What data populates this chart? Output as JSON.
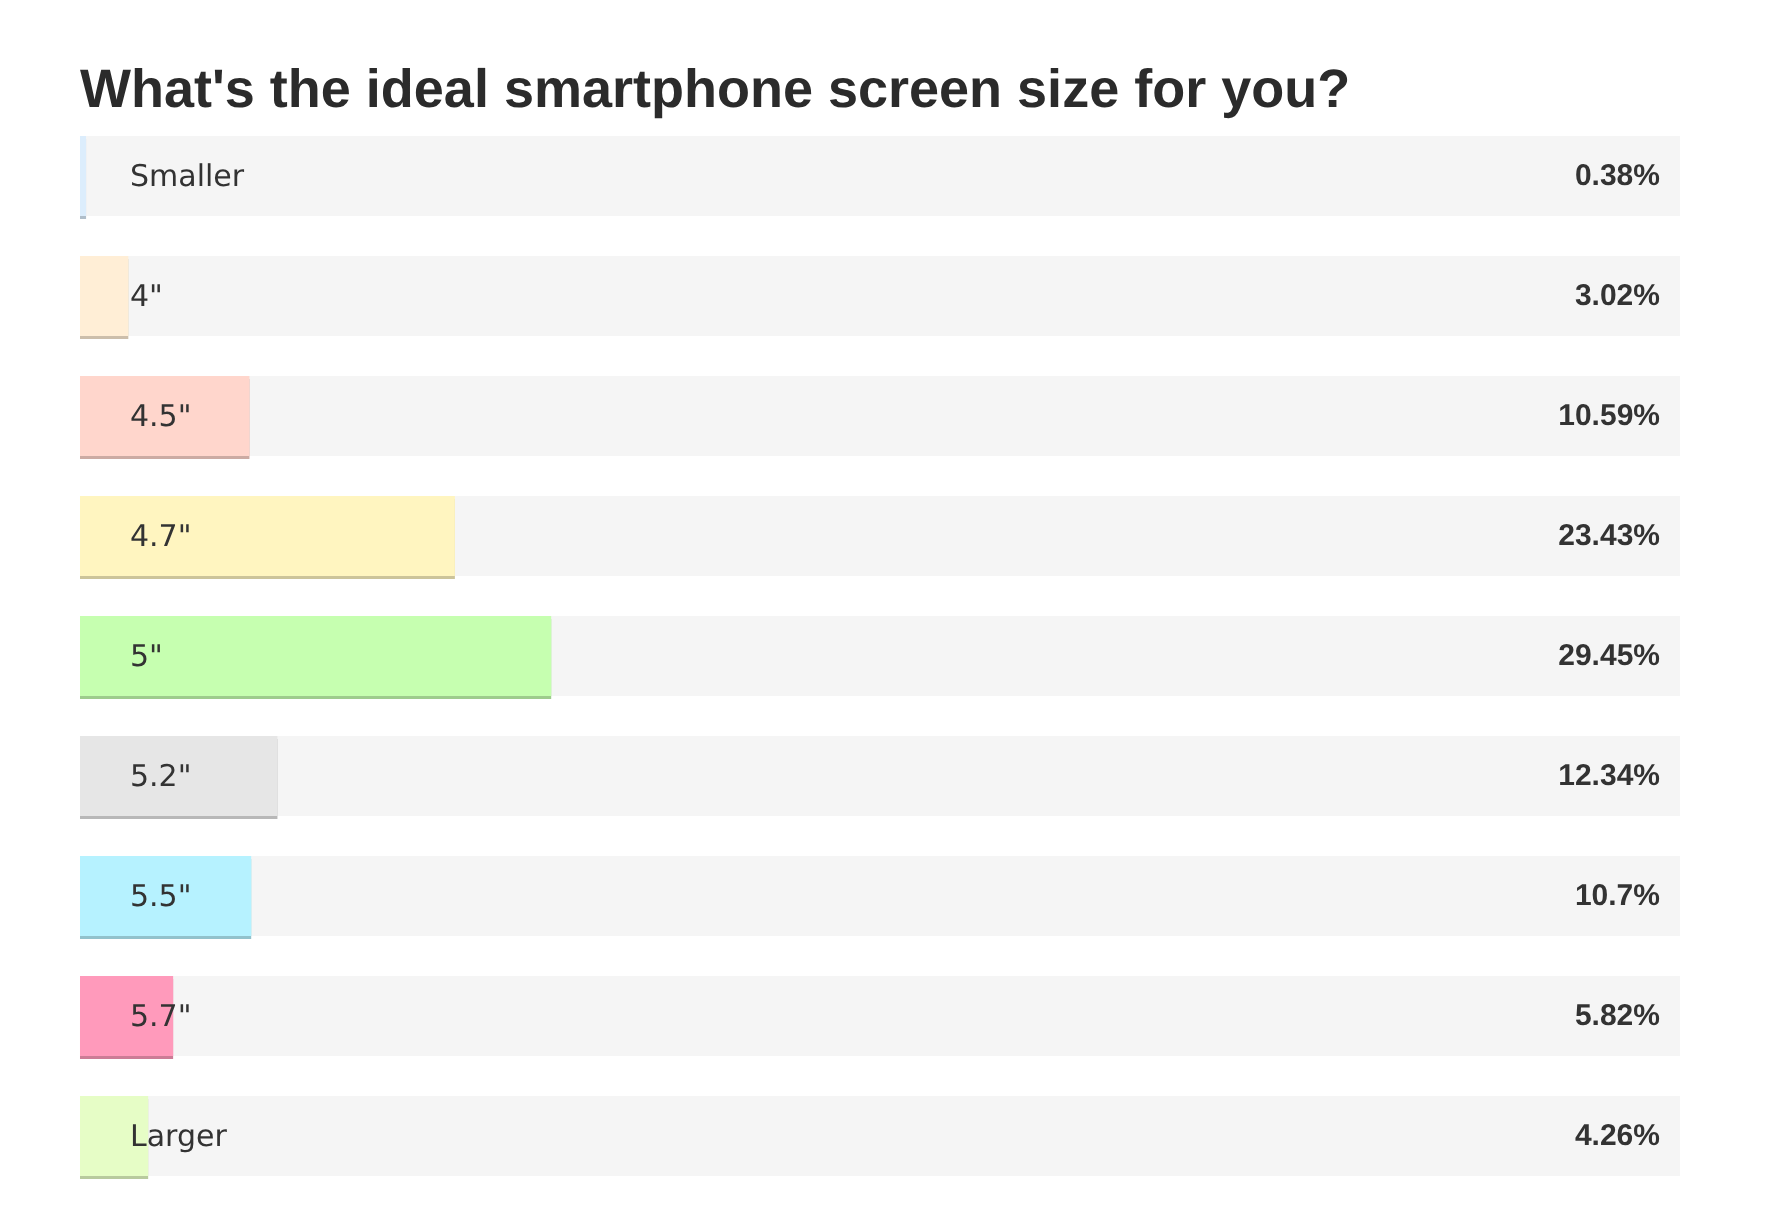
{
  "chart_data": {
    "type": "bar",
    "orientation": "horizontal",
    "title": "What's the ideal smartphone screen size for you?",
    "categories": [
      "Smaller",
      "4\"",
      "4.5\"",
      "4.7\"",
      "5\"",
      "5.2\"",
      "5.5\"",
      "5.7\"",
      "Larger"
    ],
    "values": [
      0.38,
      3.02,
      10.59,
      23.43,
      29.45,
      12.34,
      10.7,
      5.82,
      4.26
    ],
    "value_labels": [
      "0.38%",
      "3.02%",
      "10.59%",
      "23.43%",
      "29.45%",
      "12.34%",
      "10.7%",
      "5.82%",
      "4.26%"
    ],
    "colors": [
      "#dcedfc",
      "#ffeed6",
      "#ffd6cc",
      "#fff5c0",
      "#c6ffb0",
      "#e6e6e6",
      "#b6f2ff",
      "#ff9abb",
      "#e6fdc6"
    ],
    "xlim": [
      0,
      100
    ],
    "tick_labels": "y"
  }
}
